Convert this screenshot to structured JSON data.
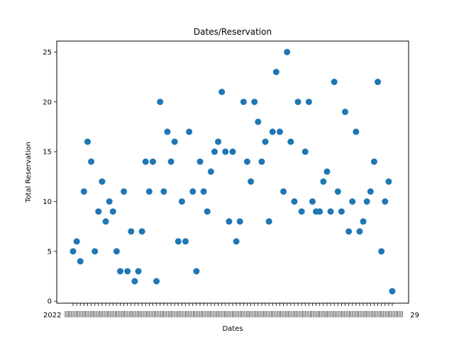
{
  "chart_data": {
    "type": "scatter",
    "title": "Dates/Reservation",
    "xlabel": "Dates",
    "ylabel": "Total Reservation",
    "ylim": [
      -0.2,
      26.1
    ],
    "yticks": [
      0,
      5,
      10,
      15,
      20,
      25
    ],
    "x_tick_prefix_left": "2022",
    "x_tick_suffix_right": "29",
    "y": [
      5,
      6,
      4,
      11,
      16,
      14,
      5,
      9,
      12,
      8,
      10,
      9,
      5,
      3,
      11,
      3,
      7,
      2,
      3,
      7,
      14,
      11,
      14,
      2,
      20,
      11,
      17,
      14,
      16,
      6,
      10,
      6,
      17,
      11,
      3,
      14,
      11,
      9,
      13,
      15,
      16,
      21,
      15,
      8,
      15,
      6,
      8,
      20,
      14,
      12,
      20,
      18,
      14,
      16,
      8,
      17,
      23,
      17,
      11,
      25,
      16,
      10,
      20,
      9,
      15,
      20,
      10,
      9,
      9,
      12,
      13,
      9,
      22,
      11,
      9,
      19,
      7,
      10,
      17,
      7,
      8,
      10,
      11,
      14,
      22,
      5,
      10,
      12,
      1
    ],
    "color": "#1f77b4",
    "grid": false,
    "legend": "none"
  }
}
